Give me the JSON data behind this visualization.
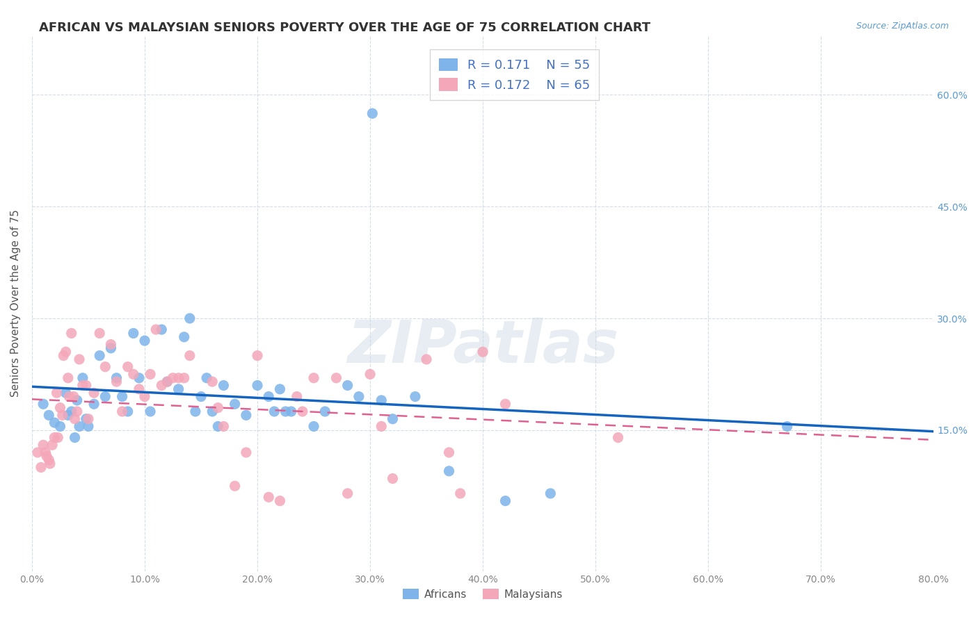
{
  "title": "AFRICAN VS MALAYSIAN SENIORS POVERTY OVER THE AGE OF 75 CORRELATION CHART",
  "source": "Source: ZipAtlas.com",
  "ylabel": "Seniors Poverty Over the Age of 75",
  "xlabel_ticks": [
    "0.0%",
    "80.0%"
  ],
  "ylabel_ticks": [
    "15.0%",
    "30.0%",
    "45.0%",
    "60.0%"
  ],
  "xlim": [
    0.0,
    0.8
  ],
  "ylim": [
    -0.04,
    0.68
  ],
  "african_R": 0.171,
  "african_N": 55,
  "malaysian_R": 0.172,
  "malaysian_N": 65,
  "african_color": "#7eb4ea",
  "malaysian_color": "#f4a7b9",
  "african_line_color": "#1565c0",
  "malaysian_line_color": "#e06090",
  "background_color": "#ffffff",
  "grid_color": "#d0d8e8",
  "watermark_text": "ZIPatlas",
  "watermark_color": "#d0dce8",
  "africans_x": [
    0.302,
    0.01,
    0.015,
    0.02,
    0.025,
    0.03,
    0.032,
    0.035,
    0.038,
    0.04,
    0.042,
    0.045,
    0.048,
    0.05,
    0.055,
    0.06,
    0.065,
    0.07,
    0.075,
    0.08,
    0.085,
    0.09,
    0.095,
    0.1,
    0.105,
    0.115,
    0.12,
    0.13,
    0.135,
    0.14,
    0.145,
    0.15,
    0.155,
    0.16,
    0.165,
    0.17,
    0.18,
    0.19,
    0.2,
    0.21,
    0.215,
    0.22,
    0.225,
    0.23,
    0.25,
    0.26,
    0.28,
    0.29,
    0.31,
    0.32,
    0.34,
    0.37,
    0.42,
    0.46,
    0.67
  ],
  "africans_y": [
    0.575,
    0.185,
    0.17,
    0.16,
    0.155,
    0.2,
    0.17,
    0.175,
    0.14,
    0.19,
    0.155,
    0.22,
    0.165,
    0.155,
    0.185,
    0.25,
    0.195,
    0.26,
    0.22,
    0.195,
    0.175,
    0.28,
    0.22,
    0.27,
    0.175,
    0.285,
    0.215,
    0.205,
    0.275,
    0.3,
    0.175,
    0.195,
    0.22,
    0.175,
    0.155,
    0.21,
    0.185,
    0.17,
    0.21,
    0.195,
    0.175,
    0.205,
    0.175,
    0.175,
    0.155,
    0.175,
    0.21,
    0.195,
    0.19,
    0.165,
    0.195,
    0.095,
    0.055,
    0.065,
    0.155
  ],
  "malaysians_x": [
    0.005,
    0.008,
    0.01,
    0.012,
    0.013,
    0.015,
    0.016,
    0.018,
    0.02,
    0.022,
    0.023,
    0.025,
    0.027,
    0.028,
    0.03,
    0.032,
    0.033,
    0.035,
    0.037,
    0.038,
    0.04,
    0.042,
    0.045,
    0.048,
    0.05,
    0.055,
    0.06,
    0.065,
    0.07,
    0.075,
    0.08,
    0.085,
    0.09,
    0.095,
    0.1,
    0.105,
    0.11,
    0.115,
    0.12,
    0.125,
    0.13,
    0.135,
    0.14,
    0.16,
    0.165,
    0.17,
    0.18,
    0.19,
    0.2,
    0.21,
    0.22,
    0.235,
    0.24,
    0.25,
    0.27,
    0.28,
    0.3,
    0.31,
    0.32,
    0.35,
    0.37,
    0.38,
    0.4,
    0.42,
    0.52
  ],
  "malaysians_y": [
    0.12,
    0.1,
    0.13,
    0.12,
    0.115,
    0.11,
    0.105,
    0.13,
    0.14,
    0.2,
    0.14,
    0.18,
    0.17,
    0.25,
    0.255,
    0.22,
    0.195,
    0.28,
    0.195,
    0.165,
    0.175,
    0.245,
    0.21,
    0.21,
    0.165,
    0.2,
    0.28,
    0.235,
    0.265,
    0.215,
    0.175,
    0.235,
    0.225,
    0.205,
    0.195,
    0.225,
    0.285,
    0.21,
    0.215,
    0.22,
    0.22,
    0.22,
    0.25,
    0.215,
    0.18,
    0.155,
    0.075,
    0.12,
    0.25,
    0.06,
    0.055,
    0.195,
    0.175,
    0.22,
    0.22,
    0.065,
    0.225,
    0.155,
    0.085,
    0.245,
    0.12,
    0.065,
    0.255,
    0.185,
    0.14
  ]
}
